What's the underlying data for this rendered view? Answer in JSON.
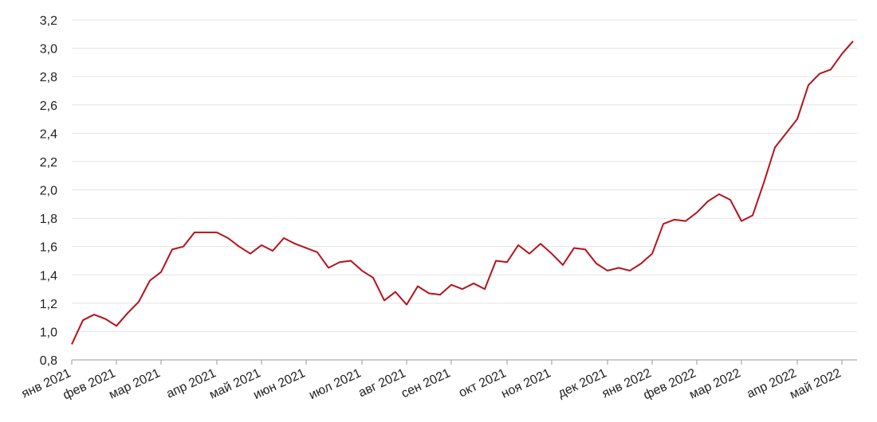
{
  "chart_data": {
    "type": "line",
    "categories": [
      "янв 2021",
      null,
      null,
      null,
      "фев 2021",
      null,
      null,
      null,
      "мар 2021",
      null,
      null,
      null,
      null,
      "апр 2021",
      null,
      null,
      null,
      "май 2021",
      null,
      null,
      null,
      "июн 2021",
      null,
      null,
      null,
      null,
      "июл 2021",
      null,
      null,
      null,
      "авг 2021",
      null,
      null,
      null,
      "сен 2021",
      null,
      null,
      null,
      null,
      "окт 2021",
      null,
      null,
      null,
      "ноя 2021",
      null,
      null,
      null,
      null,
      "дек 2021",
      null,
      null,
      null,
      "янв 2022",
      null,
      null,
      null,
      "фев 2022",
      null,
      null,
      null,
      "мар 2022",
      null,
      null,
      null,
      null,
      "апр 2022",
      null,
      null,
      null,
      "май 2022",
      null
    ],
    "values": [
      0.91,
      1.08,
      1.12,
      1.09,
      1.04,
      1.13,
      1.21,
      1.36,
      1.42,
      1.58,
      1.6,
      1.7,
      1.7,
      1.7,
      1.66,
      1.6,
      1.55,
      1.61,
      1.57,
      1.66,
      1.62,
      1.59,
      1.56,
      1.45,
      1.49,
      1.5,
      1.43,
      1.38,
      1.22,
      1.28,
      1.19,
      1.32,
      1.27,
      1.26,
      1.33,
      1.3,
      1.34,
      1.3,
      1.5,
      1.49,
      1.61,
      1.55,
      1.62,
      1.55,
      1.47,
      1.59,
      1.58,
      1.48,
      1.43,
      1.45,
      1.43,
      1.48,
      1.55,
      1.76,
      1.79,
      1.78,
      1.84,
      1.92,
      1.97,
      1.93,
      1.78,
      1.82,
      2.05,
      2.3,
      2.4,
      2.5,
      2.74,
      2.82,
      2.85,
      2.96,
      3.05
    ],
    "color": "#b5121b",
    "ylim": [
      0.8,
      3.2
    ],
    "yticks": [
      {
        "value": 0.8,
        "label": "0,8"
      },
      {
        "value": 1.0,
        "label": "1,0"
      },
      {
        "value": 1.2,
        "label": "1,2"
      },
      {
        "value": 1.4,
        "label": "1,4"
      },
      {
        "value": 1.6,
        "label": "1,6"
      },
      {
        "value": 1.8,
        "label": "1,8"
      },
      {
        "value": 2.0,
        "label": "2,0"
      },
      {
        "value": 2.2,
        "label": "2,2"
      },
      {
        "value": 2.4,
        "label": "2,4"
      },
      {
        "value": 2.6,
        "label": "2,6"
      },
      {
        "value": 2.8,
        "label": "2,8"
      },
      {
        "value": 3.0,
        "label": "3,0"
      },
      {
        "value": 3.2,
        "label": "3,2"
      }
    ],
    "grid": true
  }
}
